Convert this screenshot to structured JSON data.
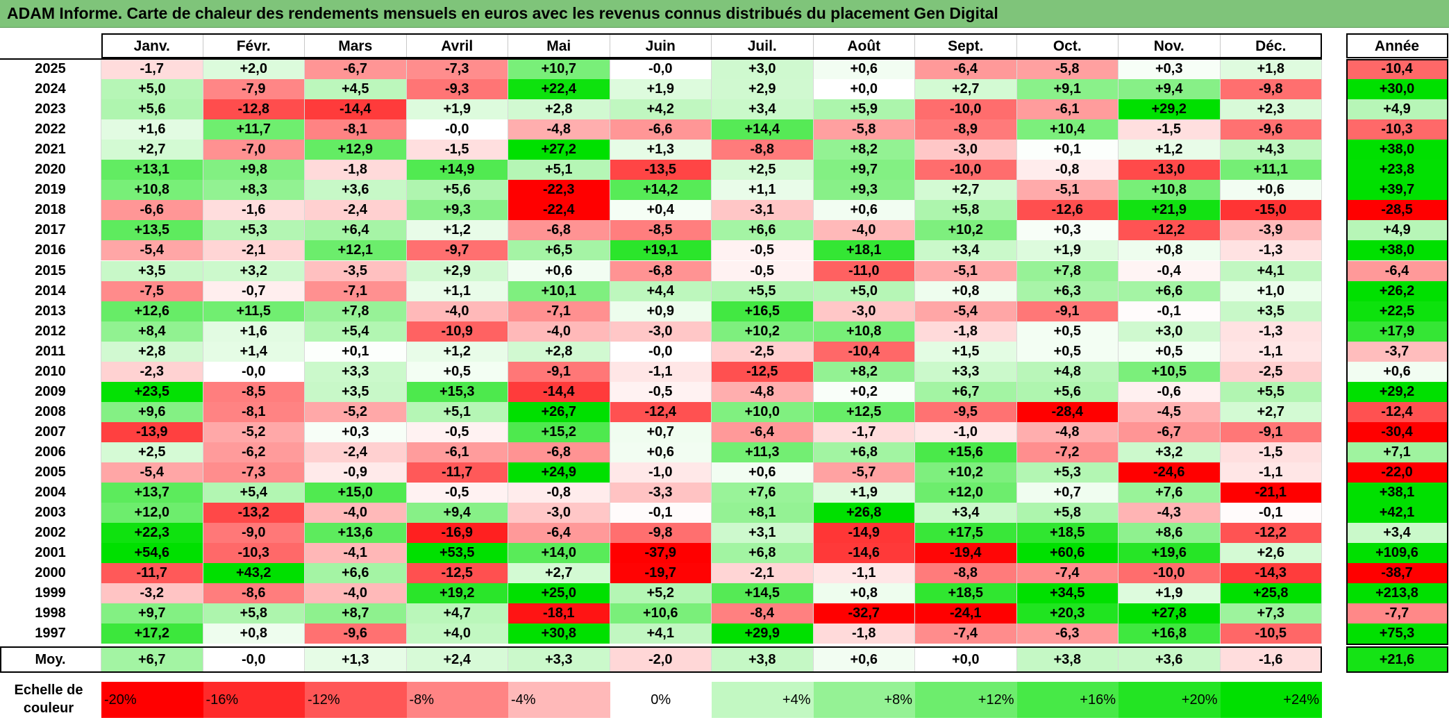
{
  "title": "ADAM Informe. Carte de chaleur des rendements mensuels en euros avec les revenus connus distribués du placement Gen Digital",
  "chart_data": {
    "type": "heatmap",
    "columns": [
      "Janv.",
      "Févr.",
      "Mars",
      "Avril",
      "Mai",
      "Juin",
      "Juil.",
      "Août",
      "Sept.",
      "Oct.",
      "Nov.",
      "Déc."
    ],
    "year_column": "Année",
    "rows": [
      {
        "label": "2025",
        "values": [
          "-1,7",
          "+2,0",
          "-6,7",
          "-7,3",
          "+10,7",
          "-0,0",
          "+3,0",
          "+0,6",
          "-6,4",
          "-5,8",
          "+0,3",
          "+1,8"
        ],
        "year": "-10,4"
      },
      {
        "label": "2024",
        "values": [
          "+5,0",
          "-7,9",
          "+4,5",
          "-9,3",
          "+22,4",
          "+1,9",
          "+2,9",
          "+0,0",
          "+2,7",
          "+9,1",
          "+9,4",
          "-9,8"
        ],
        "year": "+30,0"
      },
      {
        "label": "2023",
        "values": [
          "+5,6",
          "-12,8",
          "-14,4",
          "+1,9",
          "+2,8",
          "+4,2",
          "+3,4",
          "+5,9",
          "-10,0",
          "-6,1",
          "+29,2",
          "+2,3"
        ],
        "year": "+4,9"
      },
      {
        "label": "2022",
        "values": [
          "+1,6",
          "+11,7",
          "-8,1",
          "-0,0",
          "-4,8",
          "-6,6",
          "+14,4",
          "-5,8",
          "-8,9",
          "+10,4",
          "-1,5",
          "-9,6"
        ],
        "year": "-10,3"
      },
      {
        "label": "2021",
        "values": [
          "+2,7",
          "-7,0",
          "+12,9",
          "-1,5",
          "+27,2",
          "+1,3",
          "-8,8",
          "+8,2",
          "-3,0",
          "+0,1",
          "+1,2",
          "+4,3"
        ],
        "year": "+38,0"
      },
      {
        "label": "2020",
        "values": [
          "+13,1",
          "+9,8",
          "-1,8",
          "+14,9",
          "+5,1",
          "-13,5",
          "+2,5",
          "+9,7",
          "-10,0",
          "-0,8",
          "-13,0",
          "+11,1"
        ],
        "year": "+23,8"
      },
      {
        "label": "2019",
        "values": [
          "+10,8",
          "+8,3",
          "+3,6",
          "+5,6",
          "-22,3",
          "+14,2",
          "+1,1",
          "+9,3",
          "+2,7",
          "-5,1",
          "+10,8",
          "+0,6"
        ],
        "year": "+39,7"
      },
      {
        "label": "2018",
        "values": [
          "-6,6",
          "-1,6",
          "-2,4",
          "+9,3",
          "-22,4",
          "+0,4",
          "-3,1",
          "+0,6",
          "+5,8",
          "-12,6",
          "+21,9",
          "-15,0"
        ],
        "year": "-28,5"
      },
      {
        "label": "2017",
        "values": [
          "+13,5",
          "+5,3",
          "+6,4",
          "+1,2",
          "-6,8",
          "-8,5",
          "+6,6",
          "-4,0",
          "+10,2",
          "+0,3",
          "-12,2",
          "-3,9"
        ],
        "year": "+4,9"
      },
      {
        "label": "2016",
        "values": [
          "-5,4",
          "-2,1",
          "+12,1",
          "-9,7",
          "+6,5",
          "+19,1",
          "-0,5",
          "+18,1",
          "+3,4",
          "+1,9",
          "+0,8",
          "-1,3"
        ],
        "year": "+38,0"
      },
      {
        "label": "2015",
        "values": [
          "+3,5",
          "+3,2",
          "-3,5",
          "+2,9",
          "+0,6",
          "-6,8",
          "-0,5",
          "-11,0",
          "-5,1",
          "+7,8",
          "-0,4",
          "+4,1"
        ],
        "year": "-6,4"
      },
      {
        "label": "2014",
        "values": [
          "-7,5",
          "-0,7",
          "-7,1",
          "+1,1",
          "+10,1",
          "+4,4",
          "+5,5",
          "+5,0",
          "+0,8",
          "+6,3",
          "+6,6",
          "+1,0"
        ],
        "year": "+26,2"
      },
      {
        "label": "2013",
        "values": [
          "+12,6",
          "+11,5",
          "+7,8",
          "-4,0",
          "-7,1",
          "+0,9",
          "+16,5",
          "-3,0",
          "-5,4",
          "-9,1",
          "-0,1",
          "+3,5"
        ],
        "year": "+22,5"
      },
      {
        "label": "2012",
        "values": [
          "+8,4",
          "+1,6",
          "+5,4",
          "-10,9",
          "-4,0",
          "-3,0",
          "+10,2",
          "+10,8",
          "-1,8",
          "+0,5",
          "+3,0",
          "-1,3"
        ],
        "year": "+17,9"
      },
      {
        "label": "2011",
        "values": [
          "+2,8",
          "+1,4",
          "+0,1",
          "+1,2",
          "+2,8",
          "-0,0",
          "-2,5",
          "-10,4",
          "+1,5",
          "+0,5",
          "+0,5",
          "-1,1"
        ],
        "year": "-3,7"
      },
      {
        "label": "2010",
        "values": [
          "-2,3",
          "-0,0",
          "+3,3",
          "+0,5",
          "-9,1",
          "-1,1",
          "-12,5",
          "+8,2",
          "+3,3",
          "+4,8",
          "+10,5",
          "-2,5"
        ],
        "year": "+0,6"
      },
      {
        "label": "2009",
        "values": [
          "+23,5",
          "-8,5",
          "+3,5",
          "+15,3",
          "-14,4",
          "-0,5",
          "-4,8",
          "+0,2",
          "+6,7",
          "+5,6",
          "-0,6",
          "+5,5"
        ],
        "year": "+29,2"
      },
      {
        "label": "2008",
        "values": [
          "+9,6",
          "-8,1",
          "-5,2",
          "+5,1",
          "+26,7",
          "-12,4",
          "+10,0",
          "+12,5",
          "-9,5",
          "-28,4",
          "-4,5",
          "+2,7"
        ],
        "year": "-12,4"
      },
      {
        "label": "2007",
        "values": [
          "-13,9",
          "-5,2",
          "+0,3",
          "-0,5",
          "+15,2",
          "+0,7",
          "-6,4",
          "-1,7",
          "-1,0",
          "-4,8",
          "-6,7",
          "-9,1"
        ],
        "year": "-30,4"
      },
      {
        "label": "2006",
        "values": [
          "+2,5",
          "-6,2",
          "-2,4",
          "-6,1",
          "-6,8",
          "+0,6",
          "+11,3",
          "+6,8",
          "+15,6",
          "-7,2",
          "+3,2",
          "-1,5"
        ],
        "year": "+7,1"
      },
      {
        "label": "2005",
        "values": [
          "-5,4",
          "-7,3",
          "-0,9",
          "-11,7",
          "+24,9",
          "-1,0",
          "+0,6",
          "-5,7",
          "+10,2",
          "+5,3",
          "-24,6",
          "-1,1"
        ],
        "year": "-22,0"
      },
      {
        "label": "2004",
        "values": [
          "+13,7",
          "+5,4",
          "+15,0",
          "-0,5",
          "-0,8",
          "-3,3",
          "+7,6",
          "+1,9",
          "+12,0",
          "+0,7",
          "+7,6",
          "-21,1"
        ],
        "year": "+38,1"
      },
      {
        "label": "2003",
        "values": [
          "+12,0",
          "-13,2",
          "-4,0",
          "+9,4",
          "-3,0",
          "-0,1",
          "+8,1",
          "+26,8",
          "+3,4",
          "+5,8",
          "-4,3",
          "-0,1"
        ],
        "year": "+42,1"
      },
      {
        "label": "2002",
        "values": [
          "+22,3",
          "-9,0",
          "+13,6",
          "-16,9",
          "-6,4",
          "-9,8",
          "+3,1",
          "-14,9",
          "+17,5",
          "+18,5",
          "+8,6",
          "-12,2"
        ],
        "year": "+3,4"
      },
      {
        "label": "2001",
        "values": [
          "+54,6",
          "-10,3",
          "-4,1",
          "+53,5",
          "+14,0",
          "-37,9",
          "+6,8",
          "-14,6",
          "-19,4",
          "+60,6",
          "+19,6",
          "+2,6"
        ],
        "year": "+109,6"
      },
      {
        "label": "2000",
        "values": [
          "-11,7",
          "+43,2",
          "+6,6",
          "-12,5",
          "+2,7",
          "-19,7",
          "-2,1",
          "-1,1",
          "-8,8",
          "-7,4",
          "-10,0",
          "-14,3"
        ],
        "year": "-38,7"
      },
      {
        "label": "1999",
        "values": [
          "-3,2",
          "-8,6",
          "-4,0",
          "+19,2",
          "+25,0",
          "+5,2",
          "+14,5",
          "+0,8",
          "+18,5",
          "+34,5",
          "+1,9",
          "+25,8"
        ],
        "year": "+213,8"
      },
      {
        "label": "1998",
        "values": [
          "+9,7",
          "+5,8",
          "+8,7",
          "+4,7",
          "-18,1",
          "+10,6",
          "-8,4",
          "-32,7",
          "-24,1",
          "+20,3",
          "+27,8",
          "+7,3"
        ],
        "year": "-7,7"
      },
      {
        "label": "1997",
        "values": [
          "+17,2",
          "+0,8",
          "-9,6",
          "+4,0",
          "+30,8",
          "+4,1",
          "+29,9",
          "-1,8",
          "-7,4",
          "-6,3",
          "+16,8",
          "-10,5"
        ],
        "year": "+75,3"
      }
    ],
    "average": {
      "label": "Moy.",
      "values": [
        "+6,7",
        "-0,0",
        "+1,3",
        "+2,4",
        "+3,3",
        "-2,0",
        "+3,8",
        "+0,6",
        "+0,0",
        "+3,8",
        "+3,6",
        "-1,6"
      ],
      "year": "+21,6"
    },
    "legend": {
      "label": "Echelle de couleur",
      "steps": [
        {
          "text": "-20%",
          "value": -20
        },
        {
          "text": "-16%",
          "value": -16
        },
        {
          "text": "-12%",
          "value": -12
        },
        {
          "text": "-8%",
          "value": -8
        },
        {
          "text": "-4%",
          "value": -4
        },
        {
          "text": "0%",
          "value": 0
        },
        {
          "text": "+4%",
          "value": 4
        },
        {
          "text": "+8%",
          "value": 8
        },
        {
          "text": "+12%",
          "value": 12
        },
        {
          "text": "+16%",
          "value": 16
        },
        {
          "text": "+20%",
          "value": 20
        },
        {
          "text": "+24%",
          "value": 24
        }
      ]
    },
    "colors": {
      "negative_max": "#ff0000",
      "neutral": "#ffffff",
      "positive_max": "#00e000",
      "title_bar": "#7fc47a"
    }
  }
}
